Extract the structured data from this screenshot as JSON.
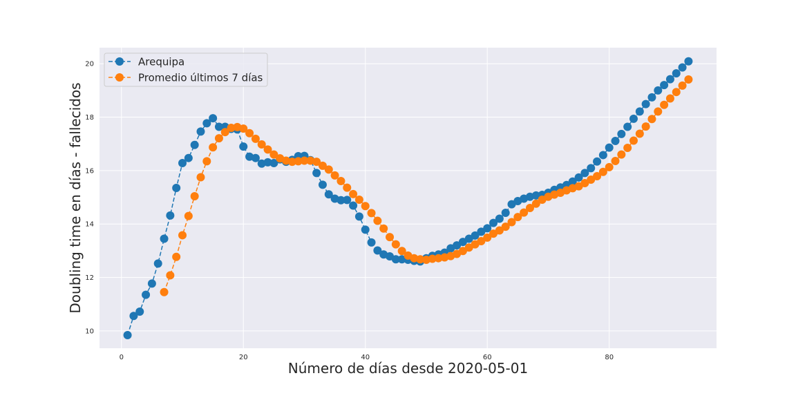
{
  "chart_data": {
    "type": "line",
    "title": "",
    "xlabel": "Número de días desde 2020-05-01",
    "ylabel": "Doubling time en días - fallecidos",
    "xlim": [
      -3.6,
      97.6
    ],
    "ylim": [
      9.35,
      20.6
    ],
    "x_ticks": [
      0,
      20,
      40,
      60,
      80
    ],
    "y_ticks": [
      10,
      12,
      14,
      16,
      18,
      20
    ],
    "grid": true,
    "legend_position": "top-left",
    "series": [
      {
        "name": "Arequipa",
        "color": "#1f77b4",
        "linestyle": "dashed",
        "marker": "circle",
        "x": [
          1,
          2,
          3,
          4,
          5,
          6,
          7,
          8,
          9,
          10,
          11,
          12,
          13,
          14,
          15,
          16,
          17,
          18,
          19,
          20,
          21,
          22,
          23,
          24,
          25,
          26,
          27,
          28,
          29,
          30,
          31,
          32,
          33,
          34,
          35,
          36,
          37,
          38,
          39,
          40,
          41,
          42,
          43,
          44,
          45,
          46,
          47,
          48,
          49,
          50,
          51,
          52,
          53,
          54,
          55,
          56,
          57,
          58,
          59,
          60,
          61,
          62,
          63,
          64,
          65,
          66,
          67,
          68,
          69,
          70,
          71,
          72,
          73,
          74,
          75,
          76,
          77,
          78,
          79,
          80,
          81,
          82,
          83,
          84,
          85,
          86,
          87,
          88,
          89,
          90,
          91,
          92,
          93
        ],
        "y": [
          9.84,
          10.56,
          10.72,
          11.35,
          11.77,
          12.52,
          13.45,
          14.32,
          15.35,
          16.28,
          16.47,
          16.96,
          17.46,
          17.77,
          17.96,
          17.64,
          17.64,
          17.56,
          17.54,
          16.9,
          16.52,
          16.47,
          16.26,
          16.31,
          16.28,
          16.42,
          16.33,
          16.4,
          16.54,
          16.55,
          16.39,
          15.91,
          15.47,
          15.11,
          14.95,
          14.89,
          14.9,
          14.69,
          14.28,
          13.79,
          13.31,
          13.01,
          12.86,
          12.79,
          12.68,
          12.68,
          12.66,
          12.62,
          12.6,
          12.72,
          12.81,
          12.86,
          12.93,
          13.09,
          13.2,
          13.33,
          13.45,
          13.57,
          13.71,
          13.84,
          14.04,
          14.2,
          14.42,
          14.74,
          14.86,
          14.95,
          15.02,
          15.07,
          15.09,
          15.17,
          15.28,
          15.37,
          15.46,
          15.59,
          15.74,
          15.91,
          16.09,
          16.34,
          16.58,
          16.86,
          17.11,
          17.37,
          17.64,
          17.94,
          18.21,
          18.49,
          18.74,
          19.0,
          19.2,
          19.42,
          19.64,
          19.86,
          20.09
        ]
      },
      {
        "name": "Promedio últimos 7 días",
        "color": "#ff7f0e",
        "linestyle": "dashed",
        "marker": "circle",
        "x": [
          7,
          8,
          9,
          10,
          11,
          12,
          13,
          14,
          15,
          16,
          17,
          18,
          19,
          20,
          21,
          22,
          23,
          24,
          25,
          26,
          27,
          28,
          29,
          30,
          31,
          32,
          33,
          34,
          35,
          36,
          37,
          38,
          39,
          40,
          41,
          42,
          43,
          44,
          45,
          46,
          47,
          48,
          49,
          50,
          51,
          52,
          53,
          54,
          55,
          56,
          57,
          58,
          59,
          60,
          61,
          62,
          63,
          64,
          65,
          66,
          67,
          68,
          69,
          70,
          71,
          72,
          73,
          74,
          75,
          76,
          77,
          78,
          79,
          80,
          81,
          82,
          83,
          84,
          85,
          86,
          87,
          88,
          89,
          90,
          91,
          92,
          93
        ],
        "y": [
          11.45,
          12.08,
          12.77,
          13.58,
          14.3,
          15.04,
          15.75,
          16.35,
          16.87,
          17.21,
          17.44,
          17.6,
          17.63,
          17.57,
          17.4,
          17.19,
          16.98,
          16.79,
          16.6,
          16.46,
          16.37,
          16.33,
          16.35,
          16.37,
          16.37,
          16.33,
          16.18,
          16.04,
          15.82,
          15.61,
          15.36,
          15.12,
          14.91,
          14.67,
          14.41,
          14.12,
          13.83,
          13.51,
          13.24,
          12.99,
          12.82,
          12.72,
          12.68,
          12.66,
          12.7,
          12.72,
          12.75,
          12.8,
          12.88,
          12.99,
          13.12,
          13.24,
          13.36,
          13.49,
          13.64,
          13.76,
          13.9,
          14.07,
          14.26,
          14.43,
          14.6,
          14.76,
          14.91,
          15.02,
          15.1,
          15.17,
          15.26,
          15.34,
          15.41,
          15.53,
          15.66,
          15.79,
          15.95,
          16.13,
          16.36,
          16.6,
          16.85,
          17.12,
          17.38,
          17.65,
          17.93,
          18.21,
          18.46,
          18.7,
          18.94,
          19.18,
          19.41
        ]
      }
    ]
  }
}
